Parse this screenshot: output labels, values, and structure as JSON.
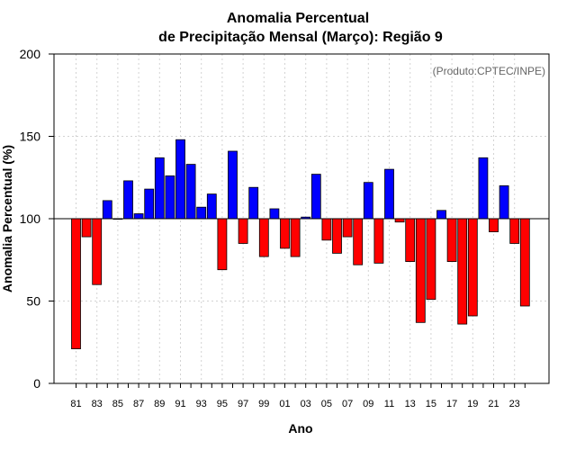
{
  "chart_data": {
    "type": "bar",
    "title_line1": "Anomalia Percentual",
    "title_line2": "de Precipitação Mensal (Março): Região 9",
    "xlabel": "Ano",
    "ylabel": "Anomalia Percentual (%)",
    "source": "(Produto:CPTEC/INPE)",
    "baseline": 100,
    "ylim": [
      0,
      200
    ],
    "yticks": [
      0,
      50,
      100,
      150,
      200
    ],
    "xtick_labels": [
      "81",
      "83",
      "85",
      "87",
      "89",
      "91",
      "93",
      "95",
      "97",
      "99",
      "01",
      "03",
      "05",
      "07",
      "09",
      "11",
      "13",
      "15",
      "17",
      "19",
      "21",
      "23"
    ],
    "years": [
      "1981",
      "1982",
      "1983",
      "1984",
      "1985",
      "1986",
      "1987",
      "1988",
      "1989",
      "1990",
      "1991",
      "1992",
      "1993",
      "1994",
      "1995",
      "1996",
      "1997",
      "1998",
      "1999",
      "2000",
      "2001",
      "2002",
      "2003",
      "2004",
      "2005",
      "2006",
      "2007",
      "2008",
      "2009",
      "2010",
      "2011",
      "2012",
      "2013",
      "2014",
      "2015",
      "2016",
      "2017",
      "2018",
      "2019",
      "2020",
      "2021",
      "2022",
      "2023",
      "2024"
    ],
    "values": [
      21,
      89,
      60,
      111,
      100,
      123,
      103,
      118,
      137,
      126,
      148,
      133,
      107,
      115,
      69,
      141,
      85,
      119,
      77,
      106,
      82,
      77,
      101,
      127,
      87,
      79,
      89,
      72,
      122,
      73,
      130,
      98,
      74,
      37,
      51,
      105,
      74,
      36,
      41,
      137,
      92,
      120,
      85,
      47
    ],
    "grid": true,
    "colors": {
      "above": "#0000ff",
      "below": "#ff0000",
      "grid": "#d3d3d3",
      "baseline": "#000000"
    }
  }
}
